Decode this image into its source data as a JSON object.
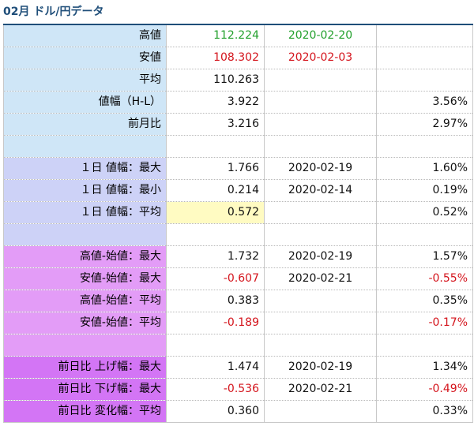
{
  "title": "02月 ドル/円データ",
  "colors": {
    "title": "#1f4e79",
    "green": "#22a02c",
    "red": "#d4141c",
    "group_blue": "#cfe6f7",
    "group_lavender": "#cdd2f7",
    "group_violet": "#e39cf7",
    "group_magenta": "#d375f5",
    "highlight": "#fffbc2"
  },
  "rows": [
    {
      "label": "高値",
      "value": "112.224",
      "date": "2020-02-20",
      "pct": "",
      "value_color": "green",
      "date_color": "green",
      "pct_color": "black",
      "group": "blue",
      "highlight": false
    },
    {
      "label": "安値",
      "value": "108.302",
      "date": "2020-02-03",
      "pct": "",
      "value_color": "red",
      "date_color": "red",
      "pct_color": "black",
      "group": "blue",
      "highlight": false
    },
    {
      "label": "平均",
      "value": "110.263",
      "date": "",
      "pct": "",
      "value_color": "black",
      "date_color": "black",
      "pct_color": "black",
      "group": "blue",
      "highlight": false
    },
    {
      "label": "値幅（H-L）",
      "value": "3.922",
      "date": "",
      "pct": "3.56%",
      "value_color": "black",
      "date_color": "black",
      "pct_color": "black",
      "group": "blue",
      "highlight": false
    },
    {
      "label": "前月比",
      "value": "3.216",
      "date": "",
      "pct": "2.97%",
      "value_color": "black",
      "date_color": "black",
      "pct_color": "black",
      "group": "blue",
      "highlight": false
    },
    {
      "spacer": true,
      "group": "blue"
    },
    {
      "label": "１日 値幅：最大",
      "value": "1.766",
      "date": "2020-02-19",
      "pct": "1.60%",
      "value_color": "black",
      "date_color": "black",
      "pct_color": "black",
      "group": "lav",
      "highlight": false
    },
    {
      "label": "１日 値幅：最小",
      "value": "0.214",
      "date": "2020-02-14",
      "pct": "0.19%",
      "value_color": "black",
      "date_color": "black",
      "pct_color": "black",
      "group": "lav",
      "highlight": false
    },
    {
      "label": "１日 値幅：平均",
      "value": "0.572",
      "date": "",
      "pct": "0.52%",
      "value_color": "black",
      "date_color": "black",
      "pct_color": "black",
      "group": "lav",
      "highlight": true
    },
    {
      "spacer": true,
      "group": "lav"
    },
    {
      "label": "高値-始値：最大",
      "value": "1.732",
      "date": "2020-02-19",
      "pct": "1.57%",
      "value_color": "black",
      "date_color": "black",
      "pct_color": "black",
      "group": "vio",
      "highlight": false
    },
    {
      "label": "安値-始値：最大",
      "value": "-0.607",
      "date": "2020-02-21",
      "pct": "-0.55%",
      "value_color": "red",
      "date_color": "black",
      "pct_color": "red",
      "group": "vio",
      "highlight": false
    },
    {
      "label": "高値-始値：平均",
      "value": "0.383",
      "date": "",
      "pct": "0.35%",
      "value_color": "black",
      "date_color": "black",
      "pct_color": "black",
      "group": "vio",
      "highlight": false
    },
    {
      "label": "安値-始値：平均",
      "value": "-0.189",
      "date": "",
      "pct": "-0.17%",
      "value_color": "red",
      "date_color": "black",
      "pct_color": "red",
      "group": "vio",
      "highlight": false
    },
    {
      "spacer": true,
      "group": "vio"
    },
    {
      "label": "前日比 上げ幅：最大",
      "value": "1.474",
      "date": "2020-02-19",
      "pct": "1.34%",
      "value_color": "black",
      "date_color": "black",
      "pct_color": "black",
      "group": "mag",
      "highlight": false
    },
    {
      "label": "前日比 下げ幅：最大",
      "value": "-0.536",
      "date": "2020-02-21",
      "pct": "-0.49%",
      "value_color": "red",
      "date_color": "black",
      "pct_color": "red",
      "group": "mag",
      "highlight": false
    },
    {
      "label": "前日比 変化幅：平均",
      "value": "0.360",
      "date": "",
      "pct": "0.33%",
      "value_color": "black",
      "date_color": "black",
      "pct_color": "black",
      "group": "mag",
      "highlight": false
    }
  ]
}
